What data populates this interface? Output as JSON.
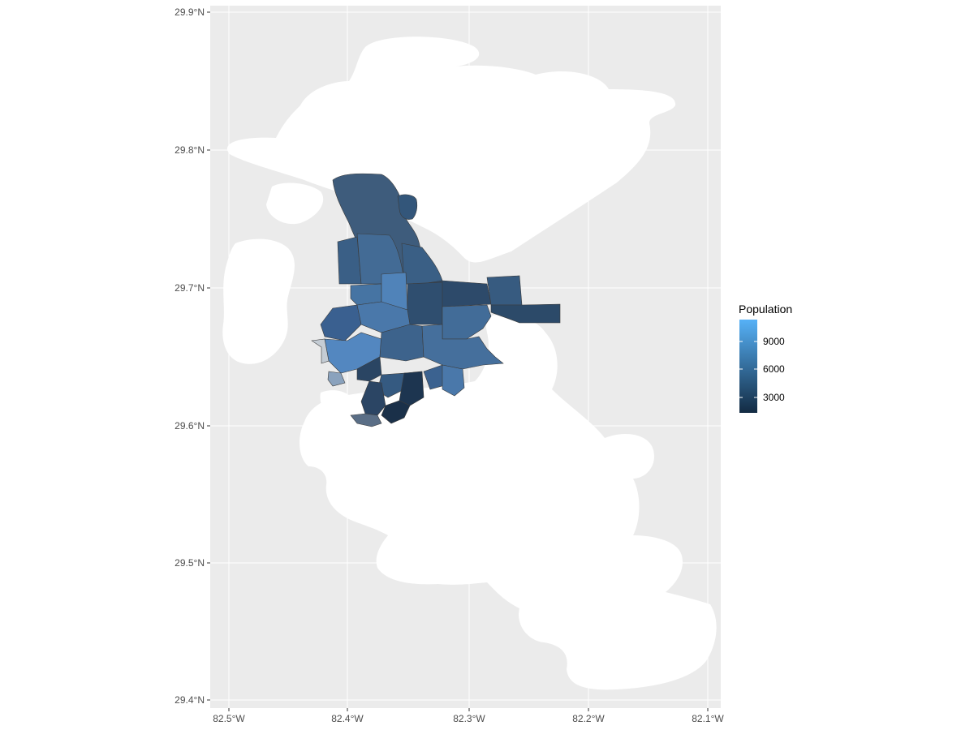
{
  "chart_data": {
    "type": "choropleth-map",
    "x_axis": {
      "ticks": [
        "82.5°W",
        "82.4°W",
        "82.3°W",
        "82.2°W",
        "82.1°W"
      ]
    },
    "y_axis": {
      "ticks": [
        "29.9°N",
        "29.8°N",
        "29.7°N",
        "29.6°N",
        "29.5°N",
        "29.4°N"
      ]
    },
    "xlim": [
      -82.515,
      -82.09
    ],
    "ylim": [
      29.395,
      29.905
    ],
    "grid": true,
    "legend": {
      "title": "Population",
      "position": "right",
      "ticks": [
        "9000",
        "6000",
        "3000"
      ],
      "color_low": "#132b43",
      "color_high": "#56b1f7"
    },
    "colors": {
      "panel_background": "#ebebeb",
      "grid_line": "#ffffff",
      "masked_area": "#ffffff",
      "na_fill": "#c4ccd4",
      "tract_border": "#3b3b3b"
    }
  }
}
